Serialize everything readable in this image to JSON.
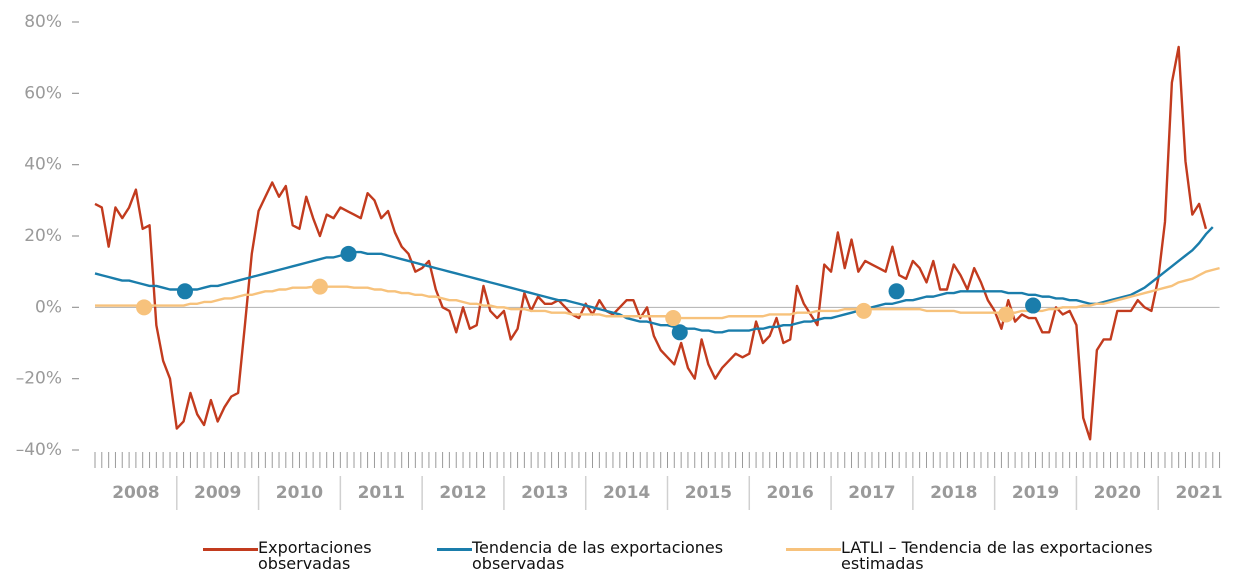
{
  "chart_data": {
    "type": "line",
    "x": [
      2008,
      2008.083,
      2008.167,
      2008.25,
      2008.333,
      2008.417,
      2008.5,
      2008.583,
      2008.667,
      2008.75,
      2008.833,
      2008.917,
      2009,
      2009.083,
      2009.167,
      2009.25,
      2009.333,
      2009.417,
      2009.5,
      2009.583,
      2009.667,
      2009.75,
      2009.833,
      2009.917,
      2010,
      2010.083,
      2010.167,
      2010.25,
      2010.333,
      2010.417,
      2010.5,
      2010.583,
      2010.667,
      2010.75,
      2010.833,
      2010.917,
      2011,
      2011.083,
      2011.167,
      2011.25,
      2011.333,
      2011.417,
      2011.5,
      2011.583,
      2011.667,
      2011.75,
      2011.833,
      2011.917,
      2012,
      2012.083,
      2012.167,
      2012.25,
      2012.333,
      2012.417,
      2012.5,
      2012.583,
      2012.667,
      2012.75,
      2012.833,
      2012.917,
      2013,
      2013.083,
      2013.167,
      2013.25,
      2013.333,
      2013.417,
      2013.5,
      2013.583,
      2013.667,
      2013.75,
      2013.833,
      2013.917,
      2014,
      2014.083,
      2014.167,
      2014.25,
      2014.333,
      2014.417,
      2014.5,
      2014.583,
      2014.667,
      2014.75,
      2014.833,
      2014.917,
      2015,
      2015.083,
      2015.167,
      2015.25,
      2015.333,
      2015.417,
      2015.5,
      2015.583,
      2015.667,
      2015.75,
      2015.833,
      2015.917,
      2016,
      2016.083,
      2016.167,
      2016.25,
      2016.333,
      2016.417,
      2016.5,
      2016.583,
      2016.667,
      2016.75,
      2016.833,
      2016.917,
      2017,
      2017.083,
      2017.167,
      2017.25,
      2017.333,
      2017.417,
      2017.5,
      2017.583,
      2017.667,
      2017.75,
      2017.833,
      2017.917,
      2018,
      2018.083,
      2018.167,
      2018.25,
      2018.333,
      2018.417,
      2018.5,
      2018.583,
      2018.667,
      2018.75,
      2018.833,
      2018.917,
      2019,
      2019.083,
      2019.167,
      2019.25,
      2019.333,
      2019.417,
      2019.5,
      2019.583,
      2019.667,
      2019.75,
      2019.833,
      2019.917,
      2020,
      2020.083,
      2020.167,
      2020.25,
      2020.333,
      2020.417,
      2020.5,
      2020.583,
      2020.667,
      2020.75,
      2020.833,
      2020.917,
      2021,
      2021.083,
      2021.167,
      2021.25,
      2021.333,
      2021.417,
      2021.5,
      2021.583,
      2021.667,
      2021.75
    ],
    "series": [
      {
        "name": "Exportaciones observadas",
        "color": "#c23b1e",
        "values": [
          29,
          28,
          17,
          28,
          25,
          28,
          33,
          22,
          23,
          -5,
          -15,
          -20,
          -34,
          -32,
          -24,
          -30,
          -33,
          -26,
          -32,
          -28,
          -25,
          -24,
          -5,
          15,
          27,
          31,
          35,
          31,
          34,
          23,
          22,
          31,
          25,
          20,
          26,
          25,
          28,
          27,
          26,
          25,
          32,
          30,
          25,
          27,
          21,
          17,
          15,
          10,
          11,
          13,
          5,
          0,
          -1,
          -7,
          0,
          -6,
          -5,
          6,
          -1,
          -3,
          -1,
          -9,
          -6,
          4,
          -1,
          3,
          1,
          1,
          2,
          0,
          -2,
          -3,
          1,
          -2,
          2,
          -1,
          -2,
          0,
          2,
          2,
          -3,
          0,
          -8,
          -12,
          -14,
          -16,
          -10,
          -17,
          -20,
          -9,
          -16,
          -20,
          -17,
          -15,
          -13,
          -14,
          -13,
          -4,
          -10,
          -8,
          -3,
          -10,
          -9,
          6,
          1,
          -2,
          -5,
          12,
          10,
          21,
          11,
          19,
          10,
          13,
          12,
          11,
          10,
          17,
          9,
          8,
          13,
          11,
          7,
          13,
          5,
          5,
          12,
          9,
          5,
          11,
          7,
          2,
          -1,
          -6,
          2,
          -4,
          -2,
          -3,
          -3,
          -7,
          -7,
          0,
          -2,
          -1,
          -5,
          -31,
          -37,
          -12,
          -9,
          -9,
          -1,
          -1,
          -1,
          2,
          0,
          -1,
          8,
          24,
          63,
          73,
          41,
          26,
          29,
          22,
          null,
          null
        ]
      },
      {
        "name": "Tendencia de las exportaciones observadas",
        "color": "#1a7dab",
        "values": [
          9.5,
          9,
          8.5,
          8,
          7.5,
          7.5,
          7,
          6.5,
          6,
          6,
          5.5,
          5,
          5,
          5,
          5,
          5,
          5.5,
          6,
          6,
          6.5,
          7,
          7.5,
          8,
          8.5,
          9,
          9.5,
          10,
          10.5,
          11,
          11.5,
          12,
          12.5,
          13,
          13.5,
          14,
          14,
          14.5,
          15,
          15.5,
          15.5,
          15,
          15,
          15,
          14.5,
          14,
          13.5,
          13,
          12.5,
          12,
          11.5,
          11,
          10.5,
          10,
          9.5,
          9,
          8.5,
          8,
          7.5,
          7,
          6.5,
          6,
          5.5,
          5,
          4.5,
          4,
          3.5,
          3,
          2.5,
          2,
          2,
          1.5,
          1,
          0.5,
          0,
          -0.5,
          -1,
          -1.5,
          -2,
          -3,
          -3.5,
          -4,
          -4,
          -4.5,
          -5,
          -5,
          -5.5,
          -5.5,
          -6,
          -6,
          -6.5,
          -6.5,
          -7,
          -7,
          -6.5,
          -6.5,
          -6.5,
          -6.5,
          -6,
          -6,
          -5.5,
          -5.5,
          -5,
          -5,
          -4.5,
          -4,
          -4,
          -3.5,
          -3,
          -3,
          -2.5,
          -2,
          -1.5,
          -1,
          -0.5,
          0,
          0.5,
          1,
          1,
          1.5,
          2,
          2,
          2.5,
          3,
          3,
          3.5,
          4,
          4,
          4.5,
          4.5,
          4.5,
          4.5,
          4.5,
          4.5,
          4.5,
          4,
          4,
          4,
          3.5,
          3.5,
          3,
          3,
          2.5,
          2.5,
          2,
          2,
          1.5,
          1,
          1,
          1.5,
          2,
          2.5,
          3,
          3.5,
          4.5,
          5.5,
          7,
          8.5,
          10,
          11.5,
          13,
          14.5,
          16,
          18,
          20.5,
          22.5,
          null
        ],
        "markers": {
          "x": [
            2009.1,
            2011.1,
            2015.15,
            2017.8,
            2019.47
          ],
          "values": [
            4.5,
            15,
            -7,
            4.5,
            0.5
          ]
        }
      },
      {
        "name": "LATLI – Tendencia de las exportaciones estimadas",
        "color": "#f7c27c",
        "values": [
          0.5,
          0.5,
          0.5,
          0.5,
          0.5,
          0.5,
          0.5,
          0.5,
          0.5,
          0.5,
          0.5,
          0.5,
          0.5,
          0.5,
          1,
          1,
          1.5,
          1.5,
          2,
          2.5,
          2.5,
          3,
          3.5,
          3.5,
          4,
          4.5,
          4.5,
          5,
          5,
          5.5,
          5.5,
          5.5,
          5.8,
          5.8,
          5.8,
          5.8,
          5.8,
          5.8,
          5.5,
          5.5,
          5.5,
          5,
          5,
          4.5,
          4.5,
          4,
          4,
          3.5,
          3.5,
          3,
          3,
          2.5,
          2,
          2,
          1.5,
          1,
          1,
          0.5,
          0.5,
          0,
          0,
          -0.5,
          -0.5,
          -0.5,
          -1,
          -1,
          -1,
          -1.5,
          -1.5,
          -1.5,
          -2,
          -2,
          -2,
          -2,
          -2,
          -2.5,
          -2.5,
          -2.5,
          -2.5,
          -2.5,
          -2.5,
          -2.5,
          -2.5,
          -2.5,
          -2.5,
          -3,
          -3,
          -3,
          -3,
          -3,
          -3,
          -3,
          -3,
          -2.5,
          -2.5,
          -2.5,
          -2.5,
          -2.5,
          -2.5,
          -2,
          -2,
          -2,
          -2,
          -1.5,
          -1.5,
          -1.5,
          -1,
          -1,
          -1,
          -1,
          -0.5,
          -0.5,
          -0.5,
          -0.5,
          -0.5,
          -0.5,
          -0.5,
          -0.5,
          -0.5,
          -0.5,
          -0.5,
          -0.5,
          -1,
          -1,
          -1,
          -1,
          -1,
          -1.5,
          -1.5,
          -1.5,
          -1.5,
          -1.5,
          -1.5,
          -1.5,
          -1.5,
          -1.5,
          -1,
          -1,
          -1,
          -1,
          -0.5,
          -0.5,
          0,
          0,
          0,
          0.5,
          0.5,
          1,
          1,
          1.5,
          2,
          2.5,
          3,
          3.5,
          4,
          4.5,
          5,
          5.5,
          6,
          7,
          7.5,
          8,
          9,
          10,
          10.5,
          11
        ],
        "markers": {
          "x": [
            2008.6,
            2010.75,
            2015.07,
            2017.4,
            2019.14
          ],
          "values": [
            0,
            5.8,
            -3,
            -1,
            -2
          ]
        }
      }
    ],
    "xlim": [
      2008,
      2022
    ],
    "xticks": [
      {
        "value": 2008.5,
        "label": "2008"
      },
      {
        "value": 2009.5,
        "label": "2009"
      },
      {
        "value": 2010.5,
        "label": "2010"
      },
      {
        "value": 2011.5,
        "label": "2011"
      },
      {
        "value": 2012.5,
        "label": "2012"
      },
      {
        "value": 2013.5,
        "label": "2013"
      },
      {
        "value": 2014.5,
        "label": "2014"
      },
      {
        "value": 2015.5,
        "label": "2015"
      },
      {
        "value": 2016.5,
        "label": "2016"
      },
      {
        "value": 2017.5,
        "label": "2017"
      },
      {
        "value": 2018.5,
        "label": "2018"
      },
      {
        "value": 2019.5,
        "label": "2019"
      },
      {
        "value": 2020.5,
        "label": "2020"
      },
      {
        "value": 2021.5,
        "label": "2021"
      }
    ],
    "ylim": [
      -40,
      80
    ],
    "yticks": [
      {
        "value": -40,
        "label": "–40%"
      },
      {
        "value": -20,
        "label": "–20%"
      },
      {
        "value": 0,
        "label": "0%"
      },
      {
        "value": 20,
        "label": "20%"
      },
      {
        "value": 40,
        "label": "40%"
      },
      {
        "value": 60,
        "label": "60%"
      },
      {
        "value": 80,
        "label": "80%"
      }
    ],
    "legend": "bottom"
  }
}
